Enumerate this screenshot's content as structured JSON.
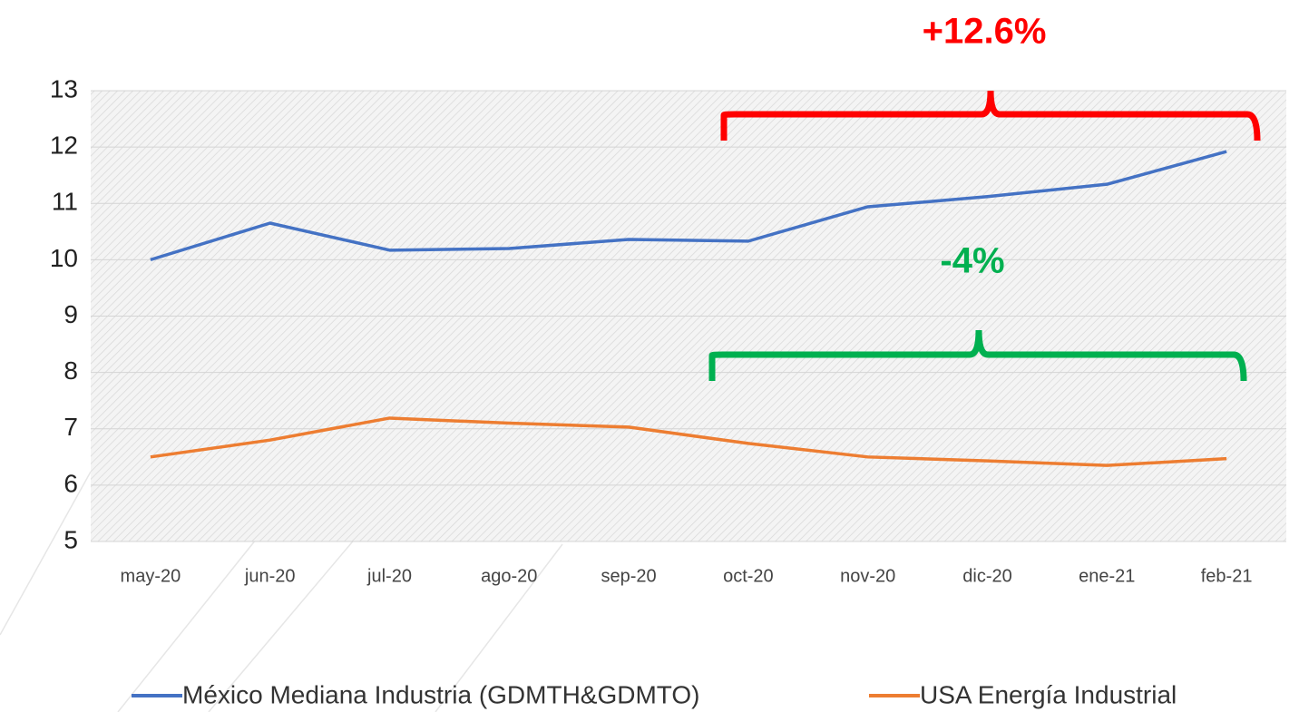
{
  "chart_data": {
    "type": "line",
    "categories": [
      "may-20",
      "jun-20",
      "jul-20",
      "ago-20",
      "sep-20",
      "oct-20",
      "nov-20",
      "dic-20",
      "ene-21",
      "feb-21"
    ],
    "series": [
      {
        "name": "México Mediana Industria (GDMTH&GDMTO)",
        "color": "#4472c4",
        "values": [
          10.0,
          10.65,
          10.17,
          10.2,
          10.36,
          10.33,
          10.94,
          11.12,
          11.34,
          11.92
        ]
      },
      {
        "name": "USA Energía Industrial",
        "color": "#ed7d31",
        "values": [
          6.5,
          6.8,
          7.19,
          7.1,
          7.03,
          6.74,
          6.5,
          6.43,
          6.35,
          6.47
        ]
      }
    ],
    "ylim": [
      5,
      13
    ],
    "yticks": [
      5,
      6,
      7,
      8,
      9,
      10,
      11,
      12,
      13
    ],
    "grid": true,
    "legend": "bottom",
    "annotations": [
      "+12.6%",
      "-4%"
    ]
  }
}
